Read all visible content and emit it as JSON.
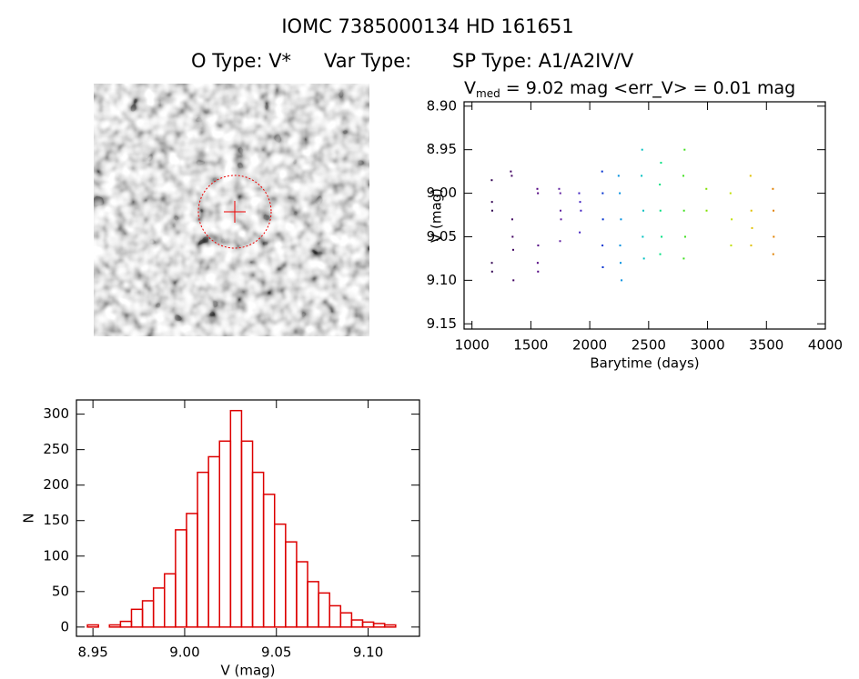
{
  "header": {
    "title": "IOMC 7385000134    HD 161651",
    "otype": "O Type: V*",
    "vartype": "Var Type:",
    "sptype": "SP Type: A1/A2IV/V"
  },
  "chart_data": [
    {
      "type": "scatter",
      "annotation": {
        "symbol": "V",
        "subscript": "med",
        "text": " = 9.02 mag <err_V> = 0.01 mag"
      },
      "xlabel": "Barytime (days)",
      "ylabel": "V (mag)",
      "xlim": [
        933,
        4000
      ],
      "ylim": [
        9.156,
        8.895
      ],
      "xticks": [
        1000,
        1500,
        2000,
        2500,
        3000,
        3500,
        4000
      ],
      "yticks": [
        {
          "value": 8.9,
          "label": "8.90"
        },
        {
          "value": 8.95,
          "label": "8.95"
        },
        {
          "value": 9.0,
          "label": "9.00"
        },
        {
          "value": 9.05,
          "label": "9.05"
        },
        {
          "value": 9.1,
          "label": "9.10"
        },
        {
          "value": 9.15,
          "label": "9.15"
        }
      ],
      "series": [
        {
          "color": "#300050",
          "x": [
            1168,
            1170,
            1172,
            1169,
            1171
          ],
          "values": [
            8.985,
            9.01,
            9.02,
            9.08,
            9.09
          ]
        },
        {
          "color": "#400060",
          "x": [
            1330,
            1338,
            1342,
            1345,
            1350,
            1352
          ],
          "values": [
            8.975,
            8.98,
            9.03,
            9.05,
            9.065,
            9.1
          ]
        },
        {
          "color": "#500080",
          "x": [
            1555,
            1560,
            1562,
            1558,
            1561
          ],
          "values": [
            8.995,
            9.0,
            9.06,
            9.08,
            9.09
          ]
        },
        {
          "color": "#6020a0",
          "x": [
            1740,
            1750,
            1752,
            1756,
            1748
          ],
          "values": [
            8.995,
            9.0,
            9.02,
            9.03,
            9.055
          ]
        },
        {
          "color": "#4020c0",
          "x": [
            1910,
            1918,
            1925,
            1915
          ],
          "values": [
            9.0,
            9.01,
            9.02,
            9.045
          ]
        },
        {
          "color": "#0030d0",
          "x": [
            2105,
            2110,
            2112,
            2108,
            2111
          ],
          "values": [
            8.975,
            9.0,
            9.03,
            9.06,
            9.085
          ]
        },
        {
          "color": "#0090e0",
          "x": [
            2245,
            2255,
            2265,
            2258,
            2262,
            2270
          ],
          "values": [
            8.98,
            9.0,
            9.03,
            9.06,
            9.08,
            9.1
          ]
        },
        {
          "color": "#00c0c0",
          "x": [
            2445,
            2440,
            2455,
            2450,
            2460
          ],
          "values": [
            8.95,
            8.98,
            9.02,
            9.05,
            9.075
          ]
        },
        {
          "color": "#00e080",
          "x": [
            2605,
            2595,
            2600,
            2610,
            2598
          ],
          "values": [
            8.965,
            8.99,
            9.02,
            9.05,
            9.07
          ]
        },
        {
          "color": "#40e020",
          "x": [
            2805,
            2795,
            2800,
            2810,
            2798
          ],
          "values": [
            8.95,
            8.98,
            9.02,
            9.05,
            9.075
          ]
        },
        {
          "color": "#80e000",
          "x": [
            2990,
            2992
          ],
          "values": [
            8.995,
            9.02
          ]
        },
        {
          "color": "#c0e000",
          "x": [
            3195,
            3205,
            3200
          ],
          "values": [
            9.0,
            9.03,
            9.06
          ]
        },
        {
          "color": "#e0c000",
          "x": [
            3365,
            3372,
            3378,
            3370
          ],
          "values": [
            8.98,
            9.02,
            9.04,
            9.06
          ]
        },
        {
          "color": "#e08000",
          "x": [
            3555,
            3560,
            3562,
            3558
          ],
          "values": [
            8.995,
            9.02,
            9.05,
            9.07
          ]
        }
      ]
    },
    {
      "type": "histogram",
      "color": "#dd0000",
      "xlabel": "V (mag)",
      "ylabel": "N",
      "xlim": [
        8.941,
        9.128
      ],
      "ylim": [
        -13,
        320
      ],
      "xticks": [
        8.95,
        {
          "value": 9.0,
          "label": "9.00"
        },
        9.05,
        {
          "value": 9.1,
          "label": "9.10"
        }
      ],
      "yticks": [
        0,
        50,
        100,
        150,
        200,
        250,
        300
      ],
      "bins": [
        8.947,
        8.953,
        8.959,
        8.965,
        8.971,
        8.977,
        8.983,
        8.989,
        8.995,
        9.001,
        9.007,
        9.013,
        9.019,
        9.025,
        9.031,
        9.037,
        9.043,
        9.049,
        9.055,
        9.061,
        9.067,
        9.073,
        9.079,
        9.085,
        9.091,
        9.097,
        9.103,
        9.109,
        9.115
      ],
      "values": [
        3,
        0,
        3,
        8,
        25,
        37,
        55,
        75,
        137,
        160,
        218,
        240,
        262,
        305,
        262,
        218,
        187,
        145,
        120,
        92,
        64,
        48,
        30,
        20,
        10,
        7,
        5,
        3
      ]
    }
  ]
}
